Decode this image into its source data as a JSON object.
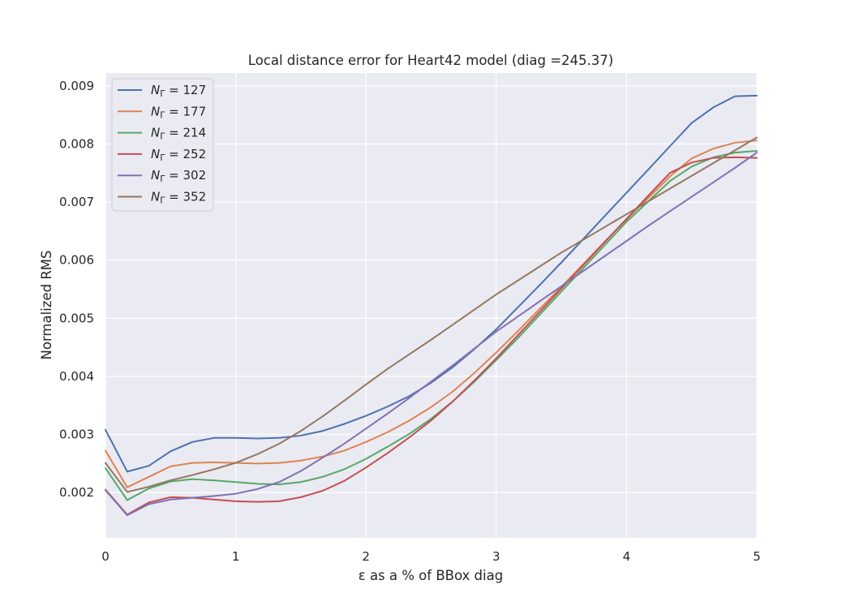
{
  "chart_data": {
    "type": "line",
    "title": "Local distance error for Heart42 model (diag =245.37)",
    "xlabel": "ε as a % of BBox diag",
    "ylabel": "Normalized RMS",
    "xlim": [
      0,
      5
    ],
    "ylim": [
      0.00122,
      0.00922
    ],
    "grid": true,
    "legend_position": "upper-left",
    "xticks": [
      0,
      1,
      2,
      3,
      4,
      5
    ],
    "xtick_labels": [
      "0",
      "1",
      "2",
      "3",
      "4",
      "5"
    ],
    "yticks": [
      0.002,
      0.003,
      0.004,
      0.005,
      0.006,
      0.007,
      0.008,
      0.009
    ],
    "ytick_labels": [
      "0.002",
      "0.003",
      "0.004",
      "0.005",
      "0.006",
      "0.007",
      "0.008",
      "0.009"
    ],
    "x": [
      0,
      0.167,
      0.333,
      0.5,
      0.667,
      0.833,
      1.0,
      1.167,
      1.333,
      1.5,
      1.667,
      1.833,
      2.0,
      2.167,
      2.333,
      2.5,
      2.667,
      2.833,
      3.0,
      3.167,
      3.333,
      3.5,
      3.667,
      3.833,
      4.0,
      4.167,
      4.333,
      4.5,
      4.667,
      4.833,
      5.0
    ],
    "series": [
      {
        "name": "N_Γ = 127",
        "legend_prefix": "N",
        "legend_sub": "Γ",
        "legend_suffix": " = 127",
        "color": "#4c72b0",
        "values": [
          0.00308,
          0.00236,
          0.00246,
          0.00271,
          0.00287,
          0.00294,
          0.00294,
          0.00293,
          0.00294,
          0.00298,
          0.00306,
          0.00318,
          0.00332,
          0.00348,
          0.00366,
          0.00389,
          0.00416,
          0.00447,
          0.00481,
          0.00519,
          0.00557,
          0.00596,
          0.00636,
          0.00676,
          0.00716,
          0.00756,
          0.00796,
          0.00836,
          0.00863,
          0.00882,
          0.00883
        ]
      },
      {
        "name": "N_Γ = 177",
        "legend_prefix": "N",
        "legend_sub": "Γ",
        "legend_suffix": " = 177",
        "color": "#dd8452",
        "values": [
          0.00272,
          0.00209,
          0.00227,
          0.00245,
          0.00251,
          0.00252,
          0.00251,
          0.0025,
          0.00251,
          0.00255,
          0.00262,
          0.00272,
          0.00287,
          0.00304,
          0.00324,
          0.00347,
          0.00374,
          0.00406,
          0.00441,
          0.00478,
          0.00516,
          0.00554,
          0.00593,
          0.00632,
          0.0067,
          0.00707,
          0.00744,
          0.00775,
          0.00792,
          0.00802,
          0.00806
        ]
      },
      {
        "name": "N_Γ = 214",
        "legend_prefix": "N",
        "legend_sub": "Γ",
        "legend_suffix": " = 214",
        "color": "#55a868",
        "values": [
          0.00242,
          0.00187,
          0.00207,
          0.00219,
          0.00223,
          0.00221,
          0.00218,
          0.00215,
          0.00214,
          0.00218,
          0.00227,
          0.0024,
          0.00258,
          0.00279,
          0.00301,
          0.00327,
          0.00357,
          0.00391,
          0.00428,
          0.00466,
          0.00506,
          0.00546,
          0.00586,
          0.00626,
          0.00666,
          0.00701,
          0.00736,
          0.00761,
          0.00777,
          0.00785,
          0.00788
        ]
      },
      {
        "name": "N_Γ = 252",
        "legend_prefix": "N",
        "legend_sub": "Γ",
        "legend_suffix": " = 252",
        "color": "#c44e52",
        "values": [
          0.00205,
          0.00162,
          0.00183,
          0.00192,
          0.00191,
          0.00188,
          0.00185,
          0.00184,
          0.00185,
          0.00192,
          0.00203,
          0.0022,
          0.00243,
          0.00268,
          0.00295,
          0.00324,
          0.00357,
          0.00393,
          0.00431,
          0.00471,
          0.00511,
          0.00551,
          0.00591,
          0.00631,
          0.00671,
          0.00711,
          0.0075,
          0.00768,
          0.00776,
          0.00777,
          0.00776
        ]
      },
      {
        "name": "N_Γ = 302",
        "legend_prefix": "N",
        "legend_sub": "Γ",
        "legend_suffix": " = 302",
        "color": "#8172b3",
        "values": [
          0.00204,
          0.00161,
          0.0018,
          0.00188,
          0.00191,
          0.00194,
          0.00198,
          0.00206,
          0.00218,
          0.00237,
          0.0026,
          0.00284,
          0.0031,
          0.00336,
          0.00363,
          0.00391,
          0.00419,
          0.00448,
          0.00477,
          0.00503,
          0.00529,
          0.00555,
          0.00581,
          0.00607,
          0.00633,
          0.00659,
          0.00684,
          0.00709,
          0.00734,
          0.00759,
          0.00785
        ]
      },
      {
        "name": "N_Γ = 352",
        "legend_prefix": "N",
        "legend_sub": "Γ",
        "legend_suffix": " = 352",
        "color": "#937860",
        "values": [
          0.00251,
          0.00201,
          0.0021,
          0.00221,
          0.0023,
          0.0024,
          0.00251,
          0.00266,
          0.00284,
          0.00306,
          0.00331,
          0.00358,
          0.00386,
          0.00413,
          0.00438,
          0.00463,
          0.00489,
          0.00515,
          0.00541,
          0.00565,
          0.00589,
          0.00613,
          0.00635,
          0.00657,
          0.00679,
          0.00701,
          0.00723,
          0.00745,
          0.00767,
          0.00789,
          0.00811
        ]
      }
    ]
  }
}
